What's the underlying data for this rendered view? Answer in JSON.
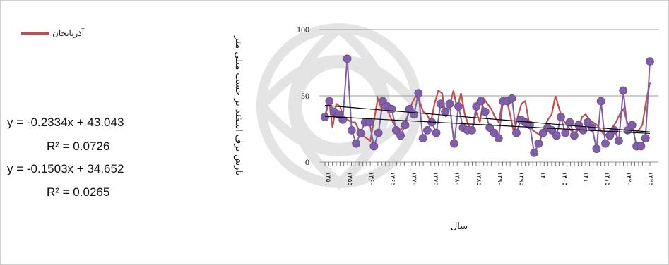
{
  "colors": {
    "series_a": "#c0504d",
    "series_b": "#7f5fa7",
    "trend": "#000000",
    "grid": "#9a9a9a"
  },
  "legend": {
    "series_name": "آذربایجان"
  },
  "equations": [
    {
      "line": "y = -0.2334x + 43.043",
      "r2": "R² = 0.0726"
    },
    {
      "line": "y = -0.1503x + 34.652",
      "r2": "R² = 0.0265"
    }
  ],
  "chart_data": {
    "type": "line",
    "title": "",
    "ylabel": "بارش برف اسفند بر حسب میلی متر",
    "xlabel": "سال",
    "ylim": [
      0,
      100
    ],
    "yticks": [
      0,
      50,
      100
    ],
    "grid": true,
    "legend_position": "left",
    "x_tick_labels": [
      "۱۳۵۰",
      "۱۳۵۵",
      "۱۳۶۰",
      "۱۳۶۵",
      "۱۳۷۰",
      "۱۳۷۵",
      "۱۳۸۰",
      "۱۳۸۵",
      "۱۳۹۰",
      "۱۳۹۵",
      "۱۴۰۰",
      "۱۴۰۵",
      "۱۴۱۰",
      "۱۴۱۵",
      "۱۴۲۰",
      "۱۴۲۵"
    ],
    "series": [
      {
        "name": "آذربایجان",
        "values": [
          34,
          48,
          26,
          44,
          42,
          33,
          32,
          30,
          30,
          24,
          20,
          18,
          16,
          32,
          48,
          40,
          42,
          36,
          30,
          26,
          24,
          28,
          36,
          44,
          50,
          46,
          38,
          36,
          30,
          44,
          54,
          52,
          34,
          42,
          54,
          40,
          52,
          36,
          28,
          24,
          38,
          30,
          48,
          44,
          40,
          34,
          30,
          46,
          48,
          36,
          22,
          34,
          44,
          46,
          30,
          24,
          22,
          20,
          26,
          32,
          36,
          50,
          40,
          32,
          28,
          24,
          22,
          24,
          34,
          36,
          32,
          30,
          28,
          24,
          20,
          22,
          26,
          30,
          36,
          40,
          30,
          26,
          22,
          24,
          28,
          46,
          60
        ]
      },
      {
        "name": "",
        "values": [
          34,
          46,
          38,
          36,
          32,
          78,
          24,
          14,
          22,
          30,
          30,
          12,
          22,
          46,
          42,
          40,
          24,
          20,
          28,
          40,
          36,
          52,
          18,
          24,
          30,
          22,
          44,
          38,
          44,
          14,
          42,
          26,
          24,
          24,
          42,
          46,
          38,
          26,
          22,
          18,
          46,
          46,
          48,
          22,
          32,
          30,
          28,
          7,
          14,
          22,
          26,
          24,
          20,
          34,
          22,
          30,
          20,
          28,
          24,
          30,
          26,
          10,
          46,
          14,
          20,
          24,
          16,
          54,
          24,
          28,
          12,
          12,
          18,
          76
        ]
      }
    ],
    "trendlines": [
      {
        "equation": "y = -0.2334x + 43.043",
        "slope": -0.2334,
        "intercept": 43.043
      },
      {
        "equation": "y = -0.1503x + 34.652",
        "slope": -0.1503,
        "intercept": 34.652
      }
    ]
  }
}
